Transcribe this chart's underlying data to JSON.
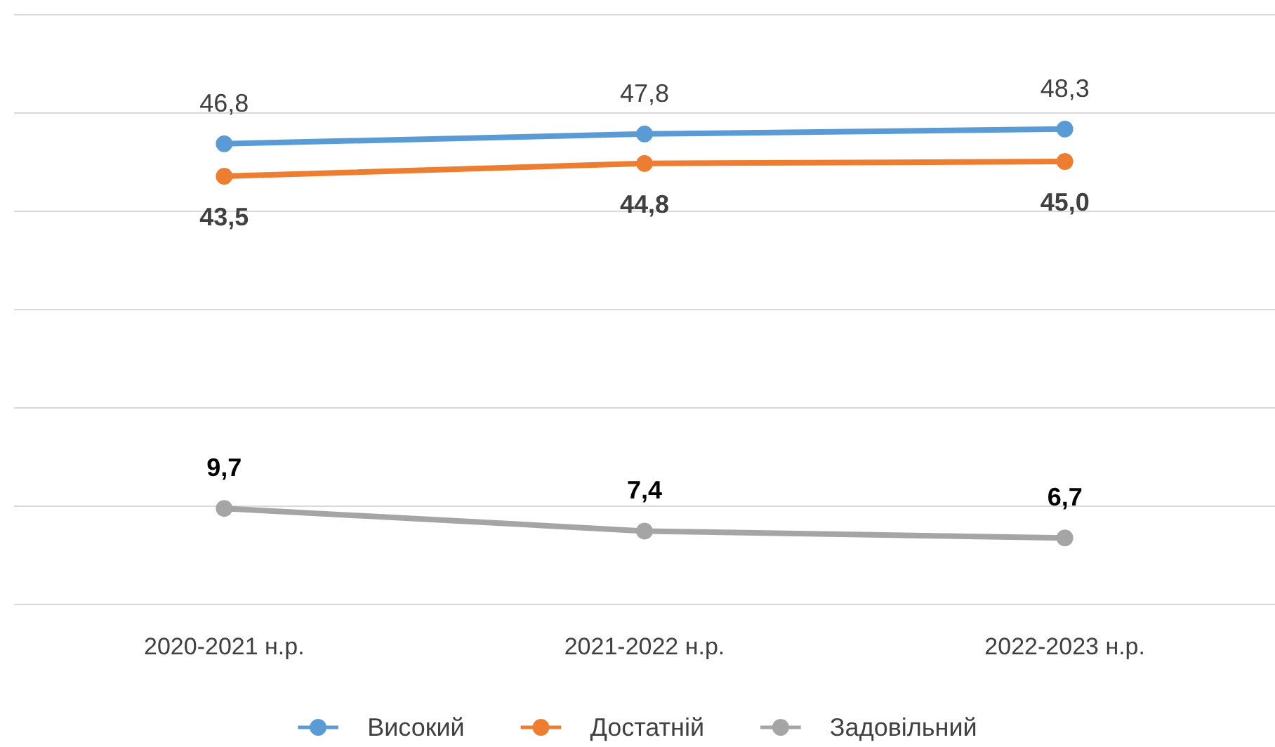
{
  "chart_data": {
    "type": "line",
    "categories": [
      "2020-2021 н.р.",
      "2021-2022 н.р.",
      "2022-2023 н.р."
    ],
    "series": [
      {
        "name": "Високий",
        "color": "#5b9bd5",
        "values": [
          46.8,
          47.8,
          48.3
        ],
        "value_labels": [
          "46,8",
          "47,8",
          "48,3"
        ]
      },
      {
        "name": "Достатній",
        "color": "#ed7d31",
        "values": [
          43.5,
          44.8,
          45.0
        ],
        "value_labels": [
          "43,5",
          "44,8",
          "45,0"
        ]
      },
      {
        "name": "Задовільний",
        "color": "#a5a5a5",
        "values": [
          9.7,
          7.4,
          6.7
        ],
        "value_labels": [
          "9,7",
          "7,4",
          "6,7"
        ]
      }
    ],
    "tick_labels": "x",
    "grid": "y",
    "legend": "bottom",
    "marker": "circle",
    "line_style": "solid"
  }
}
